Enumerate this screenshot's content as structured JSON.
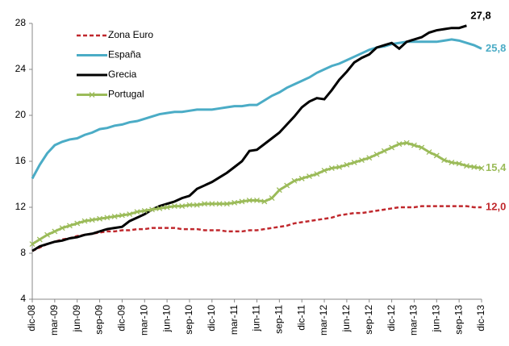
{
  "chart_data": {
    "type": "line",
    "categories": [
      "dic-08",
      null,
      null,
      "mar-09",
      null,
      null,
      "jun-09",
      null,
      null,
      "sep-09",
      null,
      null,
      "dic-09",
      null,
      null,
      "mar-10",
      null,
      null,
      "jun-10",
      null,
      null,
      "sep-10",
      null,
      null,
      "dic-10",
      null,
      null,
      "mar-11",
      null,
      null,
      "jun-11",
      null,
      null,
      "sep-11",
      null,
      null,
      "dic-11",
      null,
      null,
      "mar-12",
      null,
      null,
      "jun-12",
      null,
      null,
      "sep-12",
      null,
      null,
      "dic-12",
      null,
      null,
      "mar-13",
      null,
      null,
      "jun-13",
      null,
      null,
      "sep-13",
      null,
      null,
      "dic-13"
    ],
    "series": [
      {
        "name": "Zona Euro",
        "color": "#c0282d",
        "dashed": true,
        "values": [
          8.2,
          8.5,
          8.8,
          9.0,
          9.2,
          9.3,
          9.5,
          9.6,
          9.7,
          9.8,
          9.9,
          9.9,
          10.0,
          10.0,
          10.1,
          10.1,
          10.2,
          10.2,
          10.2,
          10.2,
          10.1,
          10.1,
          10.1,
          10.0,
          10.0,
          10.0,
          9.9,
          9.9,
          9.9,
          10.0,
          10.0,
          10.1,
          10.2,
          10.3,
          10.4,
          10.6,
          10.7,
          10.8,
          10.9,
          11.0,
          11.1,
          11.3,
          11.4,
          11.5,
          11.5,
          11.6,
          11.7,
          11.8,
          11.9,
          12.0,
          12.0,
          12.0,
          12.1,
          12.1,
          12.1,
          12.1,
          12.1,
          12.1,
          12.1,
          12.0,
          12.0
        ],
        "value_labels": [
          null,
          null,
          null,
          null,
          null,
          null,
          null,
          null,
          null,
          null,
          null,
          null,
          null,
          null,
          null,
          null,
          null,
          null,
          null,
          null,
          null,
          null,
          null,
          null,
          null,
          null,
          null,
          null,
          null,
          null,
          null,
          null,
          null,
          null,
          null,
          null,
          null,
          null,
          null,
          null,
          null,
          null,
          null,
          null,
          null,
          null,
          null,
          null,
          null,
          null,
          null,
          null,
          null,
          null,
          null,
          null,
          null,
          null,
          null,
          null,
          "12,0"
        ]
      },
      {
        "name": "España",
        "color": "#4bacc6",
        "values": [
          14.5,
          15.7,
          16.7,
          17.4,
          17.7,
          17.9,
          18.0,
          18.3,
          18.5,
          18.8,
          18.9,
          19.1,
          19.2,
          19.4,
          19.5,
          19.7,
          19.9,
          20.1,
          20.2,
          20.3,
          20.3,
          20.4,
          20.5,
          20.5,
          20.5,
          20.6,
          20.7,
          20.8,
          20.8,
          20.9,
          20.9,
          21.3,
          21.7,
          22.0,
          22.4,
          22.7,
          23.0,
          23.3,
          23.7,
          24.0,
          24.3,
          24.5,
          24.8,
          25.1,
          25.4,
          25.7,
          25.9,
          26.0,
          26.2,
          26.3,
          26.4,
          26.4,
          26.4,
          26.4,
          26.4,
          26.5,
          26.6,
          26.5,
          26.3,
          26.1,
          25.8
        ],
        "value_labels": [
          null,
          null,
          null,
          null,
          null,
          null,
          null,
          null,
          null,
          null,
          null,
          null,
          null,
          null,
          null,
          null,
          null,
          null,
          null,
          null,
          null,
          null,
          null,
          null,
          null,
          null,
          null,
          null,
          null,
          null,
          null,
          null,
          null,
          null,
          null,
          null,
          null,
          null,
          null,
          null,
          null,
          null,
          null,
          null,
          null,
          null,
          null,
          null,
          null,
          null,
          null,
          null,
          null,
          null,
          null,
          null,
          null,
          null,
          null,
          null,
          "25,8"
        ]
      },
      {
        "name": "Grecia",
        "color": "#000000",
        "values": [
          8.2,
          8.6,
          8.8,
          9.0,
          9.1,
          9.3,
          9.4,
          9.6,
          9.7,
          9.9,
          10.1,
          10.2,
          10.3,
          10.8,
          11.1,
          11.4,
          11.8,
          12.1,
          12.3,
          12.5,
          12.8,
          13.0,
          13.6,
          13.9,
          14.2,
          14.6,
          15.0,
          15.5,
          16.0,
          16.9,
          17.0,
          17.5,
          18.0,
          18.5,
          19.2,
          19.9,
          20.7,
          21.2,
          21.5,
          21.4,
          22.2,
          23.1,
          23.8,
          24.6,
          25.0,
          25.3,
          25.9,
          26.1,
          26.3,
          25.8,
          26.4,
          26.6,
          26.8,
          27.2,
          27.4,
          27.5,
          27.6,
          27.6,
          27.8,
          null,
          null
        ],
        "value_labels": [
          null,
          null,
          null,
          null,
          null,
          null,
          null,
          null,
          null,
          null,
          null,
          null,
          null,
          null,
          null,
          null,
          null,
          null,
          null,
          null,
          null,
          null,
          null,
          null,
          null,
          null,
          null,
          null,
          null,
          null,
          null,
          null,
          null,
          null,
          null,
          null,
          null,
          null,
          null,
          null,
          null,
          null,
          null,
          null,
          null,
          null,
          null,
          null,
          null,
          null,
          null,
          null,
          null,
          null,
          null,
          null,
          null,
          null,
          "27,8",
          null,
          null
        ]
      },
      {
        "name": "Portugal",
        "color": "#9bbb59",
        "marker": "x",
        "values": [
          8.8,
          9.2,
          9.6,
          9.9,
          10.2,
          10.4,
          10.6,
          10.8,
          10.9,
          11.0,
          11.1,
          11.2,
          11.3,
          11.4,
          11.6,
          11.7,
          11.8,
          11.9,
          12.0,
          12.1,
          12.1,
          12.2,
          12.2,
          12.3,
          12.3,
          12.3,
          12.3,
          12.4,
          12.5,
          12.6,
          12.6,
          12.5,
          12.8,
          13.5,
          13.9,
          14.3,
          14.5,
          14.7,
          14.9,
          15.2,
          15.4,
          15.5,
          15.7,
          15.9,
          16.1,
          16.3,
          16.6,
          16.9,
          17.2,
          17.5,
          17.6,
          17.4,
          17.2,
          16.8,
          16.5,
          16.1,
          15.9,
          15.8,
          15.6,
          15.5,
          15.4
        ],
        "value_labels": [
          null,
          null,
          null,
          null,
          null,
          null,
          null,
          null,
          null,
          null,
          null,
          null,
          null,
          null,
          null,
          null,
          null,
          null,
          null,
          null,
          null,
          null,
          null,
          null,
          null,
          null,
          null,
          null,
          null,
          null,
          null,
          null,
          null,
          null,
          null,
          null,
          null,
          null,
          null,
          null,
          null,
          null,
          null,
          null,
          null,
          null,
          null,
          null,
          null,
          null,
          null,
          null,
          null,
          null,
          null,
          null,
          null,
          null,
          null,
          null,
          "15,4"
        ]
      }
    ],
    "ylim": [
      4,
      28
    ],
    "yticks": [
      4,
      8,
      12,
      16,
      20,
      24,
      28
    ],
    "grid": false,
    "legend": "upper left"
  }
}
